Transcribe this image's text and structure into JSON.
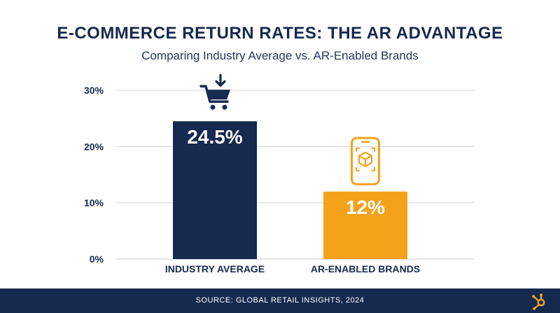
{
  "header": {
    "title": "E-COMMERCE RETURN RATES: THE AR ADVANTAGE",
    "subtitle": "Comparing Industry Average vs. AR-Enabled Brands"
  },
  "chart_data": {
    "type": "bar",
    "categories": [
      "INDUSTRY AVERAGE",
      "AR-ENABLED BRANDS"
    ],
    "values": [
      24.5,
      12
    ],
    "value_labels": [
      "24.5%",
      "12%"
    ],
    "bar_colors": [
      "#16294f",
      "#f3a21a"
    ],
    "bar_icons": [
      "shopping-cart-download-icon",
      "smartphone-ar-cube-icon"
    ],
    "ylim": [
      0,
      30
    ],
    "yticks": [
      0,
      10,
      20,
      30
    ],
    "ytick_labels": [
      "0%",
      "10%",
      "20%",
      "30%"
    ],
    "grid": true,
    "legend": "none"
  },
  "footer": {
    "source": "SOURCE: GLOBAL RETAIL INSIGHTS, 2024"
  },
  "brand": {
    "logo_icon": "hubspot-sprocket-icon",
    "color": "#f3a21a"
  },
  "colors": {
    "text_dark": "#16294f",
    "grid": "#d9d9d9"
  }
}
